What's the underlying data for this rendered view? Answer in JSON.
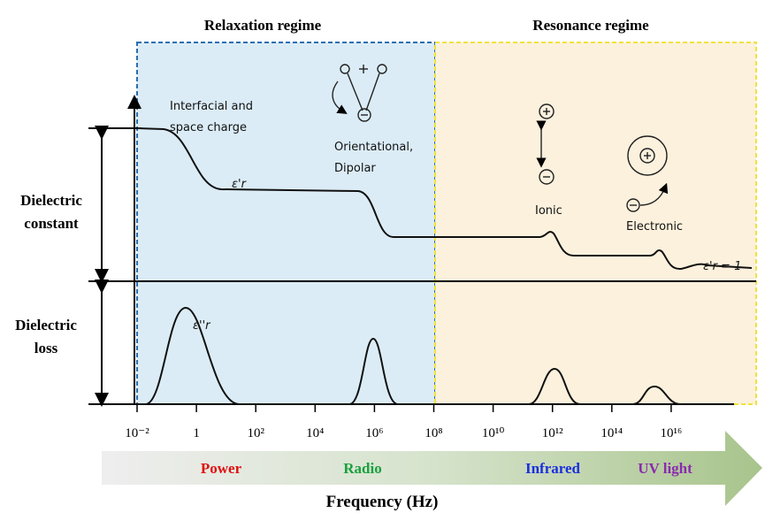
{
  "header": {
    "relaxation": "Relaxation regime",
    "resonance": "Resonance regime"
  },
  "left_labels": {
    "constant": [
      "Dielectric",
      "constant"
    ],
    "loss": [
      "Dielectric",
      "loss"
    ]
  },
  "annotations": {
    "interfacial": [
      "Interfacial and",
      "space charge"
    ],
    "orientational": [
      "Orientational,",
      "Dipolar"
    ],
    "ionic": "Ionic",
    "electronic": "Electronic",
    "eps_real": "ε'r",
    "eps_imag": "ε''r",
    "eps_one": "ε'r = 1"
  },
  "axis": {
    "ticks": [
      "10⁻²",
      "1",
      "10²",
      "10⁴",
      "10⁶",
      "10⁸",
      "10¹⁰",
      "10¹²",
      "10¹⁴",
      "10¹⁶"
    ],
    "title": "Frequency (Hz)"
  },
  "bands": [
    "Power",
    "Radio",
    "Infrared",
    "UV light"
  ]
}
